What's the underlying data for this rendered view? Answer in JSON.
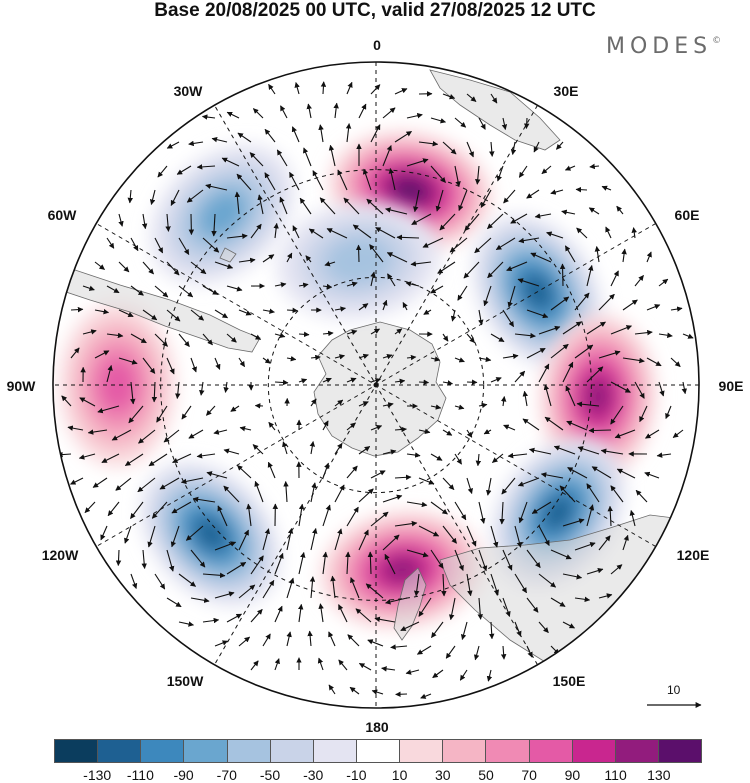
{
  "title": "Base 20/08/2025 00 UTC, valid 27/08/2025 12 UTC",
  "brand": "MODES",
  "brand_mark": "©",
  "longitude_labels": [
    "0",
    "30E",
    "60E",
    "90E",
    "120E",
    "150E",
    "180",
    "150W",
    "120W",
    "90W",
    "60W",
    "30W"
  ],
  "vector_scale_label": "10",
  "colorbar": {
    "colors": [
      "#0b3d5e",
      "#1e6092",
      "#3d88bd",
      "#6aa6cf",
      "#a6c3e0",
      "#c9d3e8",
      "#e4e4f2",
      "#ffffff",
      "#f9d9dd",
      "#f5b5c5",
      "#f08ab4",
      "#e45aa6",
      "#c9268f",
      "#921c7d",
      "#5b0f6b"
    ],
    "ticks": [
      "-130",
      "-110",
      "-90",
      "-70",
      "-50",
      "-30",
      "-10",
      "10",
      "30",
      "50",
      "70",
      "90",
      "110",
      "130"
    ]
  },
  "anomaly_centers": [
    {
      "lon": 10,
      "colat": 55,
      "value": 120
    },
    {
      "lon": 60,
      "colat": 52,
      "value": -100
    },
    {
      "lon": 93,
      "colat": 62,
      "value": 110
    },
    {
      "lon": 125,
      "colat": 62,
      "value": -115
    },
    {
      "lon": 172,
      "colat": 52,
      "value": 115
    },
    {
      "lon": -132,
      "colat": 62,
      "value": -110
    },
    {
      "lon": -90,
      "colat": 72,
      "value": 65
    },
    {
      "lon": -42,
      "colat": 64,
      "value": -75
    },
    {
      "lon": -8,
      "colat": 35,
      "value": -55
    }
  ]
}
